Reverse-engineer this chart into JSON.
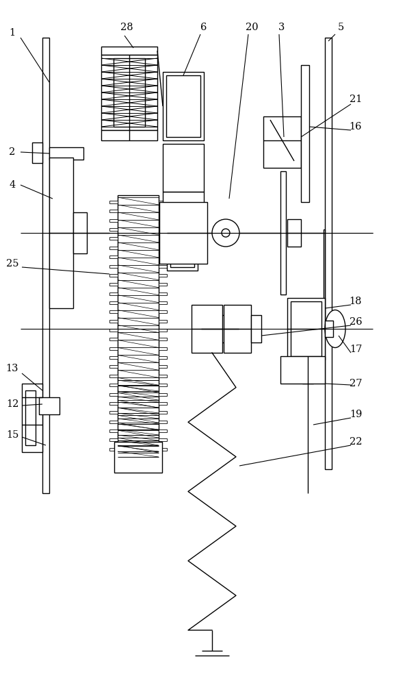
{
  "bg_color": "#ffffff",
  "line_color": "#000000",
  "fig_width": 5.76,
  "fig_height": 10.0,
  "dpi": 100
}
